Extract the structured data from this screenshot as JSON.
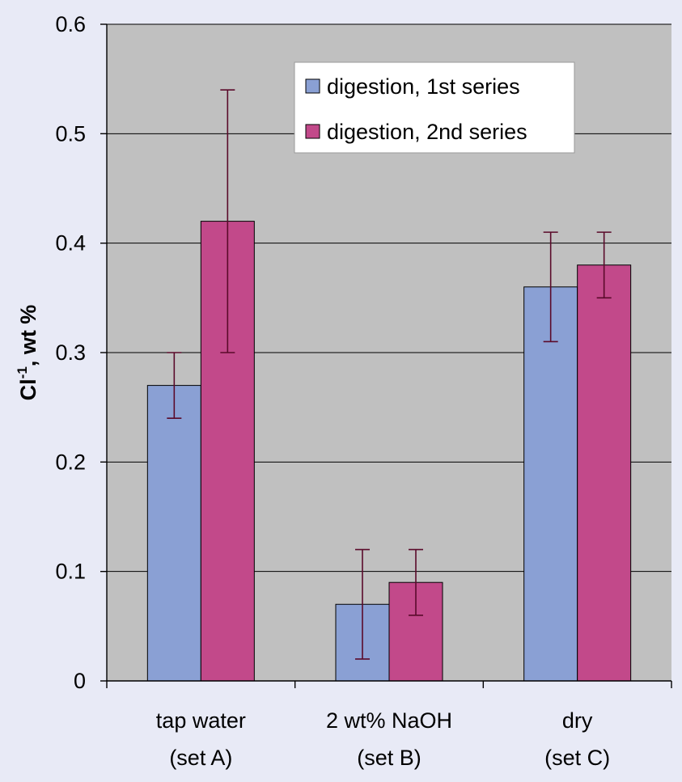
{
  "colors": {
    "background": "#e8eaf6",
    "plot_area": "#c0c0c0",
    "series_1": "#8aa0d4",
    "series_2": "#c2498a",
    "error_bar": "#5a0a2a"
  },
  "chart_data": {
    "type": "bar",
    "ylabel": "Cl -1, wt %",
    "ylabel_parts": {
      "base": "Cl",
      "sup": "-1",
      "rest": ", wt %"
    },
    "xlabel": "",
    "ylim": [
      0,
      0.6
    ],
    "yticks": [
      "0",
      "0.1",
      "0.2",
      "0.3",
      "0.4",
      "0.5",
      "0.6"
    ],
    "ytick_values": [
      0,
      0.1,
      0.2,
      0.3,
      0.4,
      0.5,
      0.6
    ],
    "grid": true,
    "legend_position": "top-right",
    "categories": [
      {
        "line1": "tap water",
        "line2": "(set A)"
      },
      {
        "line1": "2 wt% NaOH",
        "line2": "(set B)"
      },
      {
        "line1": "dry",
        "line2": "(set C)"
      }
    ],
    "series": [
      {
        "name": "digestion, 1st series",
        "values": [
          0.27,
          0.07,
          0.36
        ],
        "err_low": [
          0.24,
          0.02,
          0.31
        ],
        "err_high": [
          0.3,
          0.12,
          0.41
        ]
      },
      {
        "name": "digestion, 2nd series",
        "values": [
          0.42,
          0.09,
          0.38
        ],
        "err_low": [
          0.3,
          0.06,
          0.35
        ],
        "err_high": [
          0.54,
          0.12,
          0.41
        ]
      }
    ]
  }
}
